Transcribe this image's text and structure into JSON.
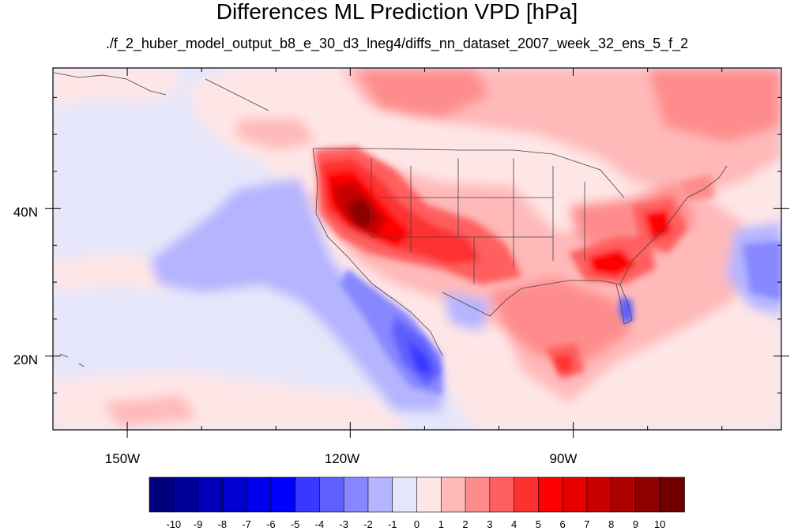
{
  "title": "Differences ML Prediction VPD [hPa]",
  "subtitle": "./f_2_huber_model_output_b8_e_30_d3_lneg4/diffs_nn_dataset_2007_week_32_ens_5_f_2",
  "map": {
    "lon_range": [
      -160,
      -62
    ],
    "lat_range": [
      10,
      59
    ],
    "lon_ticks": [
      "150W",
      "120W",
      "90W"
    ],
    "lat_ticks": [
      "20N",
      "40N"
    ]
  },
  "colorbar": {
    "labels": [
      "-10",
      "-9",
      "-8",
      "-7",
      "-6",
      "-5",
      "-4",
      "-3",
      "-2",
      "-1",
      "0",
      "1",
      "2",
      "3",
      "4",
      "5",
      "6",
      "7",
      "8",
      "9",
      "10"
    ],
    "colors": [
      "#00007a",
      "#000097",
      "#0000b8",
      "#0000d4",
      "#0000ee",
      "#0000ff",
      "#3838ff",
      "#5f5fff",
      "#8787ff",
      "#b4b4ff",
      "#e6e6fa",
      "#ffe6e6",
      "#ffb9b9",
      "#ff8c8c",
      "#ff5f5f",
      "#ff3030",
      "#ff0000",
      "#e60000",
      "#c80000",
      "#aa0000",
      "#8c0000",
      "#700000"
    ]
  }
}
